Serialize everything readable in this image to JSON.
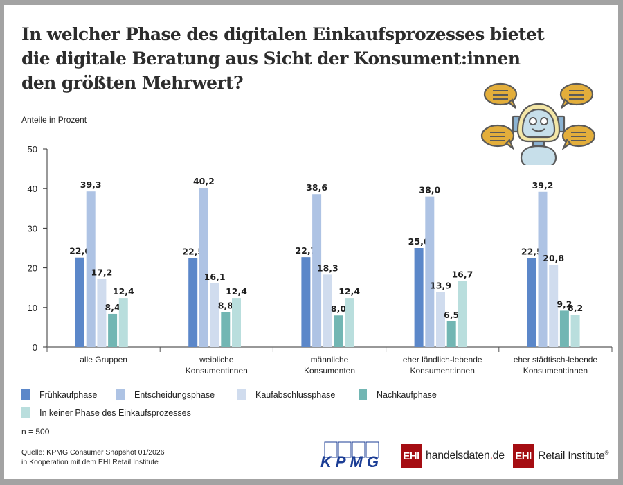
{
  "title": "In welcher Phase des digitalen Einkaufsprozesses bietet die digitale Beratung aus Sicht der Konsument:innen den größten Mehrwert?",
  "subtitle": "Anteile in Prozent",
  "sample": "n = 500",
  "source_lines": [
    "Quelle: KPMG Consumer Snapshot 01/2026",
    "in Kooperation mit dem EHI Retail Institute"
  ],
  "logos": {
    "kpmg": "KPMG",
    "ehi_box": "EHI",
    "handelsdaten": "handelsdaten",
    "handelsdaten_dot": ".",
    "handelsdaten_tld": "de",
    "retail_institute": "Retail Institute",
    "registered": "®"
  },
  "illustration": "robot-with-speech-bubbles",
  "chart_data": {
    "type": "bar",
    "title": "In welcher Phase des digitalen Einkaufsprozesses bietet die digitale Beratung aus Sicht der Konsument:innen den größten Mehrwert?",
    "ylabel": "Anteile in Prozent",
    "xlabel": "",
    "ylim": [
      0,
      50
    ],
    "yticks": [
      0,
      10,
      20,
      30,
      40,
      50
    ],
    "grid": false,
    "legend_position": "bottom",
    "categories": [
      [
        "alle Gruppen"
      ],
      [
        "weibliche",
        "Konsumentinnen"
      ],
      [
        "männliche",
        "Konsumenten"
      ],
      [
        "eher ländlich-lebende",
        "Konsument:innen"
      ],
      [
        "eher städtisch-lebende",
        "Konsument:innen"
      ]
    ],
    "series": [
      {
        "name": "Frühkaufphase",
        "color": "#5b87c9",
        "values": [
          22.6,
          22.5,
          22.7,
          25.0,
          22.5
        ],
        "labels": [
          "22,6",
          "22,5",
          "22,7",
          "25,0",
          "22,5"
        ]
      },
      {
        "name": "Entscheidungsphase",
        "color": "#aec3e4",
        "values": [
          39.3,
          40.2,
          38.6,
          38.0,
          39.2
        ],
        "labels": [
          "39,3",
          "40,2",
          "38,6",
          "38,0",
          "39,2"
        ]
      },
      {
        "name": "Kaufabschlussphase",
        "color": "#d0dcee",
        "values": [
          17.2,
          16.1,
          18.3,
          13.9,
          20.8
        ],
        "labels": [
          "17,2",
          "16,1",
          "18,3",
          "13,9",
          "20,8"
        ]
      },
      {
        "name": "Nachkaufphase",
        "color": "#72b6b3",
        "values": [
          8.4,
          8.8,
          8.0,
          6.5,
          9.2
        ],
        "labels": [
          "8,4",
          "8,8",
          "8,0",
          "6,5",
          "9,2"
        ]
      },
      {
        "name": "In keiner Phase des Einkaufsprozesses",
        "color": "#b9dedd",
        "values": [
          12.4,
          12.4,
          12.4,
          16.7,
          8.2
        ],
        "labels": [
          "12,4",
          "12,4",
          "12,4",
          "16,7",
          "8,2"
        ]
      }
    ]
  }
}
